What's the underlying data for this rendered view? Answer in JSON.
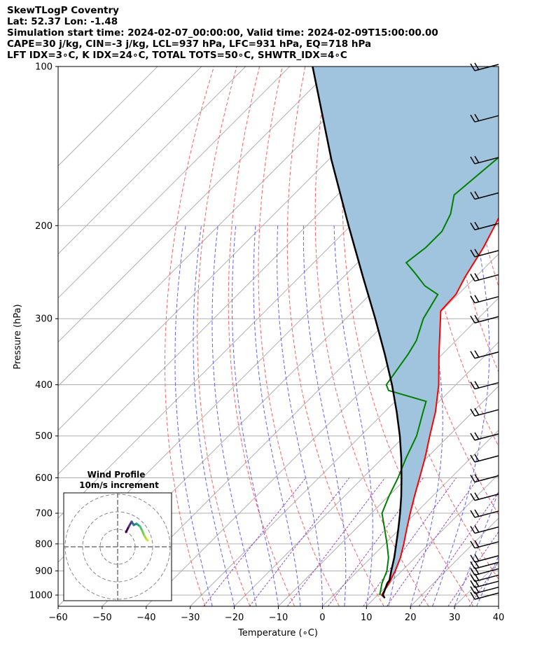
{
  "header": {
    "line1": "SkewTLogP Coventry",
    "line2": "Lat: 52.37   Lon: -1.48",
    "line3": "Simulation start time: 2024-02-07_00:00:00, Valid time: 2024-02-09T15:00:00.00",
    "line4": "CAPE=30 j/kg, CIN=-3 j/kg, LCL=937 hPa, LFC=931 hPa, EQ=718 hPa",
    "line5": "LFT IDX=3∘C, K IDX=24∘C, TOTAL TOTS=50∘C, SHWTR_IDX=4∘C"
  },
  "chart_data": {
    "type": "line",
    "subtype": "skew-T log-p",
    "xlabel": "Temperature (∘C)",
    "ylabel": "Pressure (hPa)",
    "xlim": [
      -60,
      40
    ],
    "ylim": [
      1050,
      100
    ],
    "y_scale": "log",
    "grid": true,
    "x_ticks": [
      -60,
      -50,
      -40,
      -30,
      -20,
      -10,
      0,
      10,
      20,
      30,
      40
    ],
    "x_tick_labels": [
      "−60",
      "−50",
      "−40",
      "−30",
      "−20",
      "−10",
      "0",
      "10",
      "20",
      "30",
      "40"
    ],
    "y_ticks": [
      1000,
      900,
      800,
      700,
      600,
      500,
      400,
      300,
      200,
      100
    ],
    "y_tick_labels": [
      "1000",
      "900",
      "800",
      "700",
      "600",
      "500",
      "400",
      "300",
      "200",
      "100"
    ],
    "series": [
      {
        "kind": "temperature",
        "color": "#ff0000",
        "points": [
          [
            1013,
            12.3
          ],
          [
            1000,
            10.9
          ],
          [
            950,
            9.9
          ],
          [
            900,
            8.5
          ],
          [
            850,
            6.7
          ],
          [
            800,
            4.3
          ],
          [
            750,
            1.6
          ],
          [
            700,
            -1.2
          ],
          [
            650,
            -4.1
          ],
          [
            600,
            -7.1
          ],
          [
            550,
            -10.4
          ],
          [
            500,
            -14.3
          ],
          [
            450,
            -18.5
          ],
          [
            400,
            -23.9
          ],
          [
            350,
            -30.8
          ],
          [
            300,
            -38.5
          ],
          [
            290,
            -40.2
          ],
          [
            270,
            -40.5
          ],
          [
            250,
            -42.4
          ],
          [
            220,
            -44.9
          ],
          [
            200,
            -47.3
          ],
          [
            180,
            -50.0
          ],
          [
            150,
            -54.4
          ],
          [
            130,
            -58.6
          ],
          [
            115,
            -62.3
          ],
          [
            105,
            -64.9
          ],
          [
            100,
            -66.2
          ]
        ]
      },
      {
        "kind": "dewpoint",
        "color": "#008000",
        "points": [
          [
            1000,
            10.5
          ],
          [
            950,
            8.3
          ],
          [
            900,
            6.6
          ],
          [
            850,
            4.0
          ],
          [
            800,
            0.5
          ],
          [
            750,
            -3.4
          ],
          [
            700,
            -7.6
          ],
          [
            650,
            -9.9
          ],
          [
            600,
            -12.0
          ],
          [
            550,
            -14.7
          ],
          [
            500,
            -17.3
          ],
          [
            450,
            -21.3
          ],
          [
            430,
            -23.0
          ],
          [
            410,
            -34.0
          ],
          [
            400,
            -35.8
          ],
          [
            350,
            -37.8
          ],
          [
            330,
            -39.0
          ],
          [
            300,
            -42.4
          ],
          [
            270,
            -44.6
          ],
          [
            260,
            -49.5
          ],
          [
            245,
            -55.0
          ],
          [
            235,
            -59.0
          ],
          [
            220,
            -58.0
          ],
          [
            205,
            -58.0
          ],
          [
            190,
            -60.0
          ],
          [
            175,
            -63.5
          ],
          [
            150,
            -62.0
          ],
          [
            130,
            -60.5
          ],
          [
            115,
            -59.5
          ],
          [
            100,
            -56.0
          ]
        ]
      },
      {
        "kind": "parcel",
        "color": "#000000",
        "points": [
          [
            1013,
            12.3
          ],
          [
            1000,
            11.2
          ],
          [
            950,
            9.5
          ],
          [
            937,
            9.3
          ],
          [
            900,
            7.6
          ],
          [
            850,
            5.3
          ],
          [
            800,
            2.6
          ],
          [
            750,
            -0.3
          ],
          [
            700,
            -3.5
          ],
          [
            650,
            -7.1
          ],
          [
            600,
            -11.2
          ],
          [
            550,
            -15.8
          ],
          [
            500,
            -21.1
          ],
          [
            450,
            -27.3
          ],
          [
            400,
            -34.5
          ],
          [
            350,
            -43.1
          ],
          [
            300,
            -53.3
          ],
          [
            250,
            -65.6
          ],
          [
            200,
            -80.5
          ],
          [
            150,
            -99.4
          ],
          [
            100,
            -124.8
          ]
        ]
      }
    ],
    "reference_lines": {
      "isotherms": "solid gray, skewed",
      "dry_adiabats": "dashed red",
      "moist_adiabats": "dashed blue",
      "mixing_ratio": "dashed purple"
    },
    "shading": {
      "between": "temperature and parcel",
      "color": "#a0c4de"
    },
    "wind_barbs": {
      "color": "#000000",
      "note": "barbs along right edge at each level",
      "levels_hpa": [
        1000,
        975,
        950,
        925,
        900,
        875,
        850,
        800,
        750,
        700,
        650,
        600,
        550,
        500,
        450,
        400,
        350,
        300,
        275,
        250,
        225,
        200,
        175,
        150,
        125,
        100
      ]
    },
    "hodograph": {
      "title": "Wind Profile",
      "subtitle": "10m/s increment",
      "ring_increment_ms": 10,
      "colormap": "viridis"
    }
  }
}
